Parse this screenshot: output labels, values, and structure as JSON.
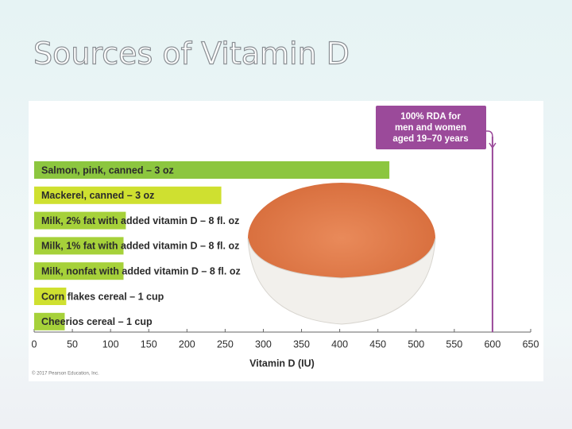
{
  "title": "Sources of Vitamin D",
  "chart_data": {
    "type": "bar",
    "orientation": "horizontal",
    "categories": [
      "Salmon, pink, canned – 3 oz",
      "Mackerel, canned – 3 oz",
      "Milk, 2% fat with added vitamin D – 8 fl. oz",
      "Milk, 1% fat with added vitamin D – 8 fl. oz",
      "Milk, nonfat with added vitamin D – 8 fl. oz",
      "Corn flakes cereal – 1 cup",
      "Cheerios cereal – 1 cup"
    ],
    "values": [
      465,
      245,
      120,
      117,
      117,
      42,
      40
    ],
    "colors": [
      "#8cc63f",
      "#cfe030",
      "#a6d13a",
      "#a6d13a",
      "#a6d13a",
      "#cfe030",
      "#a6d13a"
    ],
    "xlabel": "Vitamin D (IU)",
    "xlim": [
      0,
      650
    ],
    "xticks": [
      0,
      50,
      100,
      150,
      200,
      250,
      300,
      350,
      400,
      450,
      500,
      550,
      600,
      650
    ],
    "rda_line": {
      "value": 600,
      "label": [
        "100% RDA for",
        "men and women",
        "aged 19–70 years"
      ],
      "color": "#9b4a9a"
    },
    "credit": "© 2017 Pearson Education, Inc."
  }
}
